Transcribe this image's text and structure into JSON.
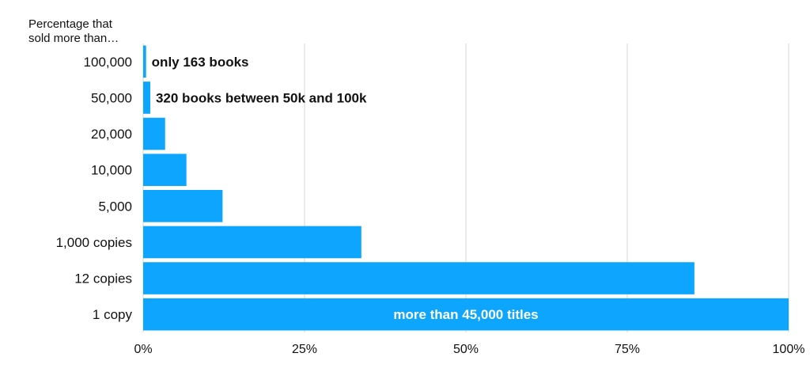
{
  "header": {
    "label_line1": "Percentage that",
    "label_line2": "sold more than…"
  },
  "chart_data": {
    "type": "bar",
    "orientation": "horizontal",
    "categories": [
      "100,000",
      "50,000",
      "20,000",
      "10,000",
      "5,000",
      "1,000 copies",
      "12 copies",
      "1 copy"
    ],
    "values": [
      0.45,
      1.1,
      3.4,
      6.7,
      12.3,
      33.8,
      85.4,
      100
    ],
    "xlim": [
      0,
      100
    ],
    "xticks": [
      "0%",
      "25%",
      "50%",
      "75%",
      "100%"
    ],
    "grid": "vertical",
    "bar_color": "#0ea5ff",
    "annotations": [
      {
        "category": "100,000",
        "text": "only 163 books",
        "color": "#111111"
      },
      {
        "category": "50,000",
        "text": "320 books between 50k and 100k",
        "color": "#111111"
      },
      {
        "category": "1 copy",
        "text": "more than 45,000 titles",
        "color": "#ffffff"
      }
    ]
  }
}
